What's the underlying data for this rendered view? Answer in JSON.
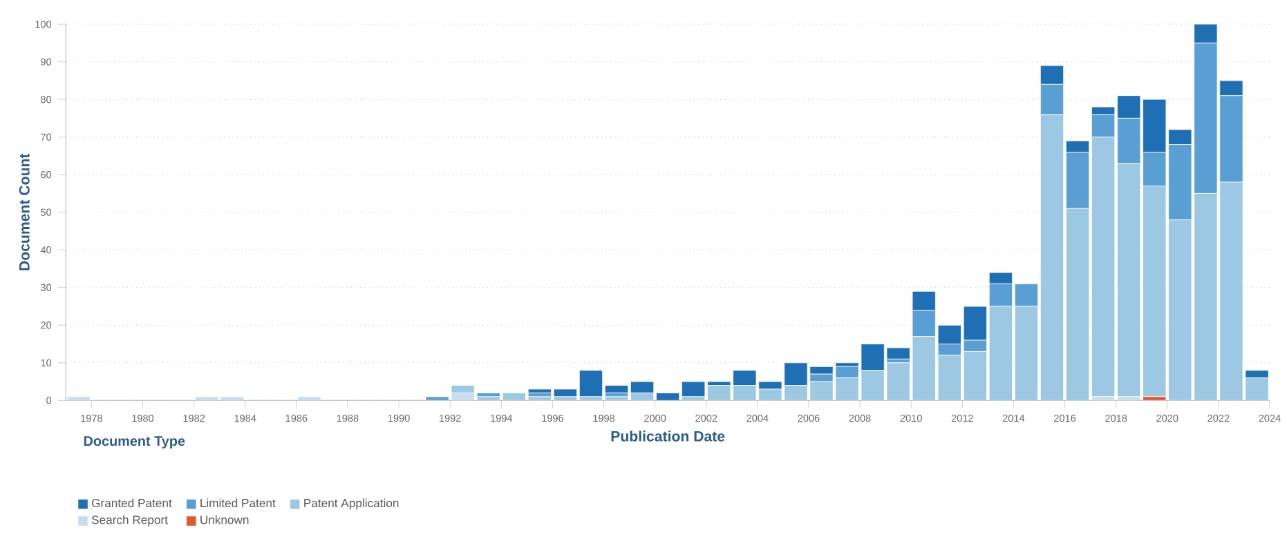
{
  "chart_data": {
    "type": "bar",
    "stacked": true,
    "xlabel": "Publication Date",
    "ylabel": "Document Count",
    "legend_title": "Document Type",
    "legend": "bottom left",
    "grid": "y",
    "x": [
      1977.5,
      1978.5,
      1979.5,
      1980.5,
      1981.5,
      1982.5,
      1983.5,
      1984.5,
      1985.5,
      1986.5,
      1987.5,
      1988.5,
      1989.5,
      1990.5,
      1991.5,
      1992.5,
      1993.5,
      1994.5,
      1995.5,
      1996.5,
      1997.5,
      1998.5,
      1999.5,
      2000.5,
      2001.5,
      2002.5,
      2003.5,
      2004.5,
      2005.5,
      2006.5,
      2007.5,
      2008.5,
      2009.5,
      2010.5,
      2011.5,
      2012.5,
      2013.5,
      2014.5,
      2015.5,
      2016.5,
      2017.5,
      2018.5,
      2019.5,
      2020.5,
      2021.5,
      2022.5,
      2023.5
    ],
    "xlim": [
      1977,
      2024
    ],
    "xticks": [
      1978,
      1980,
      1982,
      1984,
      1986,
      1988,
      1990,
      1992,
      1994,
      1996,
      1998,
      2000,
      2002,
      2004,
      2006,
      2008,
      2010,
      2012,
      2014,
      2016,
      2018,
      2020,
      2022,
      2024
    ],
    "ylim": [
      0,
      100
    ],
    "yticks": [
      0,
      10,
      20,
      30,
      40,
      50,
      60,
      70,
      80,
      90,
      100
    ],
    "series": [
      {
        "name": "Unknown",
        "color": "#e4572e",
        "values": [
          0,
          0,
          0,
          0,
          0,
          0,
          0,
          0,
          0,
          0,
          0,
          0,
          0,
          0,
          0,
          0,
          0,
          0,
          0,
          0,
          0,
          0,
          0,
          0,
          0,
          0,
          0,
          0,
          0,
          0,
          0,
          0,
          0,
          0,
          0,
          0,
          0,
          0,
          0,
          0,
          0,
          0,
          1,
          0,
          0,
          0,
          0
        ]
      },
      {
        "name": "Search Report",
        "color": "#c6dcef",
        "values": [
          1,
          0,
          0,
          0,
          0,
          1,
          1,
          0,
          0,
          1,
          0,
          0,
          0,
          0,
          0,
          2,
          0,
          0,
          0,
          0,
          0,
          0,
          0,
          0,
          0,
          0,
          0,
          0,
          0,
          0,
          0,
          0,
          0,
          0,
          0,
          0,
          0,
          0,
          0,
          0,
          1,
          1,
          0,
          0,
          0,
          0,
          0
        ]
      },
      {
        "name": "Patent Application",
        "color": "#9dc8e4",
        "values": [
          0,
          0,
          0,
          0,
          0,
          0,
          0,
          0,
          0,
          0,
          0,
          0,
          0,
          0,
          0,
          2,
          1,
          2,
          1,
          1,
          1,
          1,
          2,
          0,
          1,
          4,
          4,
          3,
          4,
          5,
          6,
          8,
          10,
          17,
          12,
          13,
          25,
          25,
          76,
          51,
          69,
          62,
          56,
          48,
          55,
          58,
          6
        ]
      },
      {
        "name": "Limited Patent",
        "color": "#5a9fd4",
        "values": [
          0,
          0,
          0,
          0,
          0,
          0,
          0,
          0,
          0,
          0,
          0,
          0,
          0,
          0,
          1,
          0,
          1,
          0,
          1,
          0,
          0,
          1,
          0,
          0,
          0,
          0,
          0,
          0,
          0,
          2,
          3,
          0,
          1,
          7,
          3,
          3,
          6,
          6,
          8,
          15,
          6,
          12,
          9,
          20,
          40,
          23,
          0
        ]
      },
      {
        "name": "Granted Patent",
        "color": "#1f6fb4",
        "values": [
          0,
          0,
          0,
          0,
          0,
          0,
          0,
          0,
          0,
          0,
          0,
          0,
          0,
          0,
          0,
          0,
          0,
          0,
          1,
          2,
          7,
          2,
          3,
          2,
          4,
          1,
          4,
          2,
          6,
          2,
          1,
          7,
          3,
          5,
          5,
          9,
          3,
          0,
          5,
          3,
          2,
          6,
          14,
          4,
          5,
          4,
          2
        ]
      }
    ]
  }
}
